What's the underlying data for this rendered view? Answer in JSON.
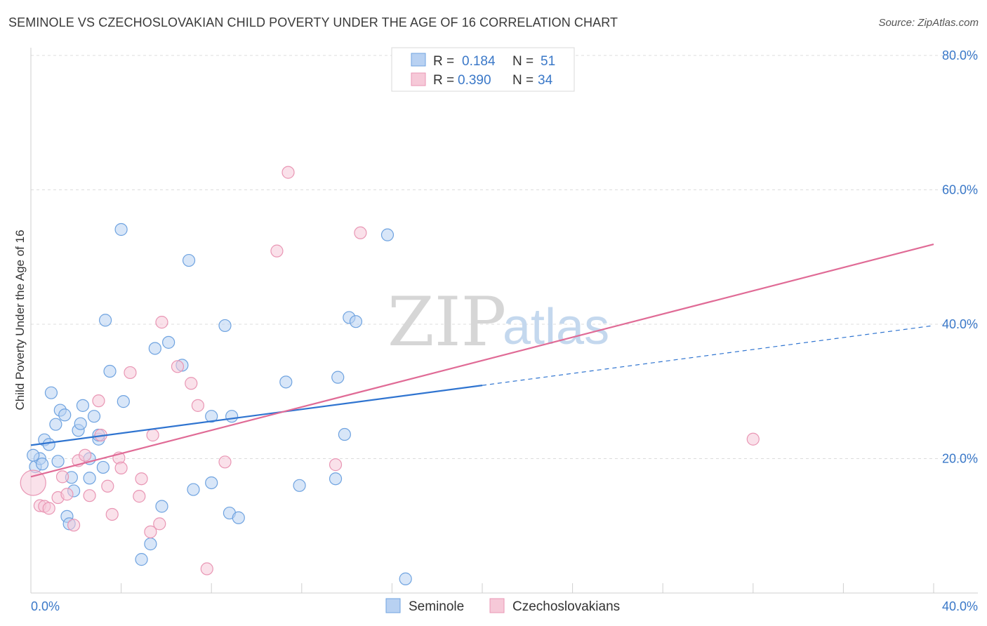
{
  "header": {
    "title": "SEMINOLE VS CZECHOSLOVAKIAN CHILD POVERTY UNDER THE AGE OF 16 CORRELATION CHART",
    "source": "Source: ZipAtlas.com"
  },
  "watermark": {
    "zip": "ZIP",
    "atlas": "atlas"
  },
  "legend": {
    "r_label": "R =",
    "n_label": "N =",
    "entries": [
      {
        "r": "0.184",
        "n": "51"
      },
      {
        "r": "0.390",
        "n": "34"
      }
    ]
  },
  "chart_data": {
    "type": "scatter",
    "title": "SEMINOLE VS CZECHOSLOVAKIAN CHILD POVERTY UNDER THE AGE OF 16 CORRELATION CHART",
    "xlabel": "",
    "ylabel": "Child Poverty Under the Age of 16",
    "xlim": [
      0,
      40
    ],
    "ylim": [
      0,
      80
    ],
    "x_tick_labels": [
      "0.0%",
      "40.0%"
    ],
    "y_ticks": [
      20,
      40,
      60,
      80
    ],
    "y_tick_labels": [
      "20.0%",
      "40.0%",
      "60.0%",
      "80.0%"
    ],
    "grid": true,
    "legend_position": "top-center",
    "series": [
      {
        "name": "Seminole",
        "color": "#6fa3e0",
        "fill": "#b8d1f2",
        "trend": {
          "x0": 0,
          "y0": 22.0,
          "x1": 20,
          "y1": 30.9,
          "dashed_to": 40,
          "dashed_y": 39.8,
          "color": "#2f74d0"
        },
        "points": [
          [
            0.2,
            18.8
          ],
          [
            0.4,
            20.0
          ],
          [
            0.5,
            19.2
          ],
          [
            0.6,
            22.8
          ],
          [
            0.8,
            22.1
          ],
          [
            0.9,
            29.8
          ],
          [
            1.1,
            25.1
          ],
          [
            1.2,
            19.6
          ],
          [
            1.3,
            27.2
          ],
          [
            1.5,
            26.5
          ],
          [
            1.6,
            11.4
          ],
          [
            1.7,
            10.3
          ],
          [
            1.8,
            17.2
          ],
          [
            1.9,
            15.2
          ],
          [
            2.1,
            24.2
          ],
          [
            2.2,
            25.2
          ],
          [
            2.3,
            27.9
          ],
          [
            2.6,
            20.0
          ],
          [
            2.6,
            17.1
          ],
          [
            2.8,
            26.3
          ],
          [
            3.0,
            22.9
          ],
          [
            3.0,
            23.5
          ],
          [
            3.2,
            18.7
          ],
          [
            3.3,
            40.6
          ],
          [
            3.5,
            33.0
          ],
          [
            4.0,
            54.1
          ],
          [
            4.1,
            28.5
          ],
          [
            4.9,
            5.0
          ],
          [
            5.3,
            7.3
          ],
          [
            5.5,
            36.4
          ],
          [
            5.8,
            12.9
          ],
          [
            6.1,
            37.3
          ],
          [
            6.7,
            33.9
          ],
          [
            7.0,
            49.5
          ],
          [
            7.2,
            15.4
          ],
          [
            8.0,
            16.4
          ],
          [
            8.0,
            26.3
          ],
          [
            8.6,
            39.8
          ],
          [
            8.8,
            11.9
          ],
          [
            8.9,
            26.3
          ],
          [
            9.2,
            11.2
          ],
          [
            11.3,
            31.4
          ],
          [
            11.9,
            16.0
          ],
          [
            13.5,
            17.0
          ],
          [
            13.6,
            32.1
          ],
          [
            13.9,
            23.6
          ],
          [
            14.1,
            41.0
          ],
          [
            14.4,
            40.4
          ],
          [
            15.8,
            53.3
          ],
          [
            16.6,
            2.1
          ],
          [
            0.1,
            20.5
          ]
        ]
      },
      {
        "name": "Czechoslovakians",
        "color": "#e996b4",
        "fill": "#f6c9d8",
        "trend": {
          "x0": 0,
          "y0": 17.3,
          "x1": 40,
          "y1": 51.9,
          "color": "#e06b96"
        },
        "points": [
          [
            0.1,
            16.4
          ],
          [
            0.4,
            13.0
          ],
          [
            0.6,
            12.9
          ],
          [
            0.8,
            12.6
          ],
          [
            1.2,
            14.2
          ],
          [
            1.4,
            17.3
          ],
          [
            1.6,
            14.7
          ],
          [
            1.9,
            10.1
          ],
          [
            2.1,
            19.7
          ],
          [
            2.4,
            20.5
          ],
          [
            2.6,
            14.5
          ],
          [
            3.0,
            28.6
          ],
          [
            3.1,
            23.5
          ],
          [
            3.4,
            15.9
          ],
          [
            3.6,
            11.7
          ],
          [
            3.9,
            20.1
          ],
          [
            4.0,
            18.6
          ],
          [
            4.4,
            32.8
          ],
          [
            4.8,
            14.4
          ],
          [
            4.9,
            17.0
          ],
          [
            5.3,
            9.1
          ],
          [
            5.4,
            23.5
          ],
          [
            5.7,
            10.3
          ],
          [
            5.8,
            40.3
          ],
          [
            6.5,
            33.7
          ],
          [
            7.1,
            31.2
          ],
          [
            7.4,
            27.9
          ],
          [
            7.8,
            3.6
          ],
          [
            8.6,
            19.5
          ],
          [
            10.9,
            50.9
          ],
          [
            11.4,
            62.6
          ],
          [
            13.5,
            19.1
          ],
          [
            14.6,
            53.6
          ],
          [
            32.0,
            22.9
          ]
        ]
      }
    ]
  },
  "bottom_legend": [
    "Seminole",
    "Czechoslovakians"
  ]
}
